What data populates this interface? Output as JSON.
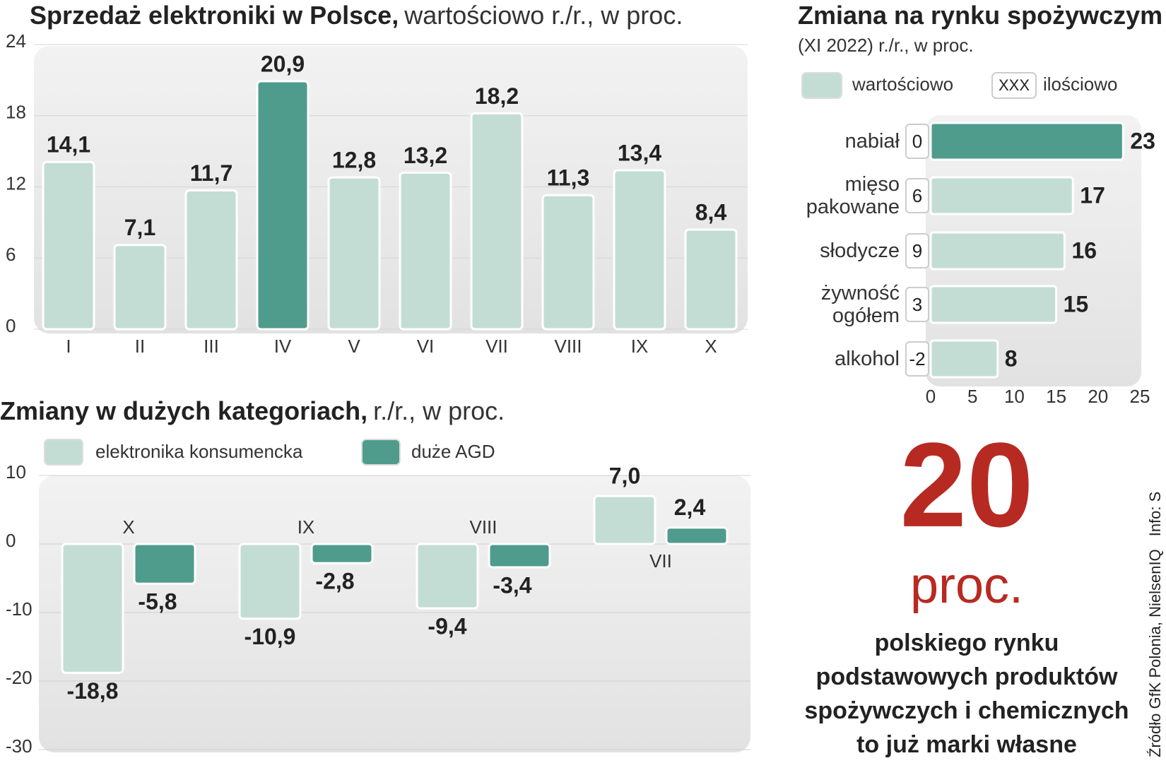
{
  "chart_data": [
    {
      "type": "bar",
      "title": "Sprzedaż elektroniki w Polsce,",
      "subtitle": "wartościowo r./r., w proc.",
      "categories": [
        "I",
        "II",
        "III",
        "IV",
        "V",
        "VI",
        "VII",
        "VIII",
        "IX",
        "X"
      ],
      "values": [
        14.1,
        7.1,
        11.7,
        20.9,
        12.8,
        13.2,
        18.2,
        11.3,
        13.4,
        8.4
      ],
      "value_labels": [
        "14,1",
        "7,1",
        "11,7",
        "20,9",
        "12,8",
        "13,2",
        "18,2",
        "11,3",
        "13,4",
        "8,4"
      ],
      "colors": [
        "#c3ddd5",
        "#c3ddd5",
        "#c3ddd5",
        "#4f9c8c",
        "#c3ddd5",
        "#c3ddd5",
        "#c3ddd5",
        "#c3ddd5",
        "#c3ddd5",
        "#c3ddd5"
      ],
      "ylim": [
        0,
        24
      ],
      "yticks": [
        0,
        6,
        12,
        18,
        24
      ],
      "grid": true
    },
    {
      "type": "hbar",
      "title": "Zmiana na rynku spożywczym",
      "subtitle": "(XI 2022) r./r., w proc.",
      "categories": [
        "nabiał",
        "mięso pakowane",
        "słodycze",
        "żywność ogółem",
        "alkohol"
      ],
      "series": [
        {
          "name": "wartościowo",
          "color": "#c3ddd5",
          "colors": [
            "#4f9c8c",
            "#c3ddd5",
            "#c3ddd5",
            "#c3ddd5",
            "#c3ddd5"
          ],
          "values": [
            23,
            17,
            16,
            15,
            8
          ]
        },
        {
          "name": "ilościowo",
          "symbol": "XXX",
          "values": [
            0,
            6,
            9,
            3,
            -2
          ]
        }
      ],
      "xlim": [
        0,
        25
      ],
      "xticks": [
        0,
        5,
        10,
        15,
        20,
        25
      ]
    },
    {
      "type": "grouped_bar",
      "title": "Zmiany w dużych kategoriach,",
      "subtitle": "r./r., w proc.",
      "categories": [
        "X",
        "IX",
        "VIII",
        "VII"
      ],
      "series": [
        {
          "name": "elektronika konsumencka",
          "color": "#c3ddd5",
          "values": [
            -18.8,
            -10.9,
            -9.4,
            7.0
          ],
          "value_labels": [
            "-18,8",
            "-10,9",
            "-9,4",
            "7,0"
          ]
        },
        {
          "name": "duże AGD",
          "color": "#4f9c8c",
          "values": [
            -5.8,
            -2.8,
            -3.4,
            2.4
          ],
          "value_labels": [
            "-5,8",
            "-2,8",
            "-3,4",
            "2,4"
          ]
        }
      ],
      "ylim": [
        -30,
        10
      ],
      "yticks": [
        -30,
        -20,
        -10,
        0,
        10
      ],
      "grid": true
    }
  ],
  "callout": {
    "number": "20",
    "unit": "proc.",
    "lines": [
      "polskiego rynku",
      "podstawowych produktów",
      "spożywczych i chemicznych",
      "to już marki własne"
    ]
  },
  "source": "Źródło GfK Polonia, NielsenIQ",
  "credit": "Info: S"
}
